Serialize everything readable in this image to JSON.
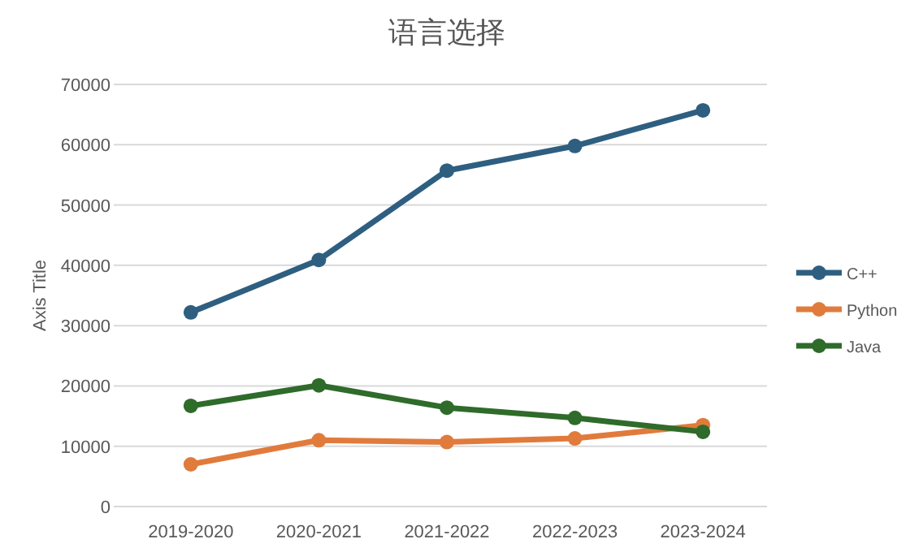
{
  "chart_data": {
    "type": "line",
    "title": "语言选择",
    "ylabel": "Axis Title",
    "categories": [
      "2019-2020",
      "2020-2021",
      "2021-2022",
      "2022-2023",
      "2023-2024"
    ],
    "series": [
      {
        "name": "C++",
        "color": "#2e5f80",
        "values": [
          32200,
          40900,
          55700,
          59800,
          65700
        ]
      },
      {
        "name": "Python",
        "color": "#e07b3c",
        "values": [
          7000,
          11000,
          10700,
          11300,
          13500
        ]
      },
      {
        "name": "Java",
        "color": "#2f6b2a",
        "values": [
          16700,
          20100,
          16400,
          14700,
          12400
        ]
      }
    ],
    "ylim": [
      0,
      70000
    ],
    "yticks": [
      0,
      10000,
      20000,
      30000,
      40000,
      50000,
      60000,
      70000
    ],
    "grid": "y",
    "legend": "right",
    "marker": "circle",
    "line_style": "solid"
  }
}
